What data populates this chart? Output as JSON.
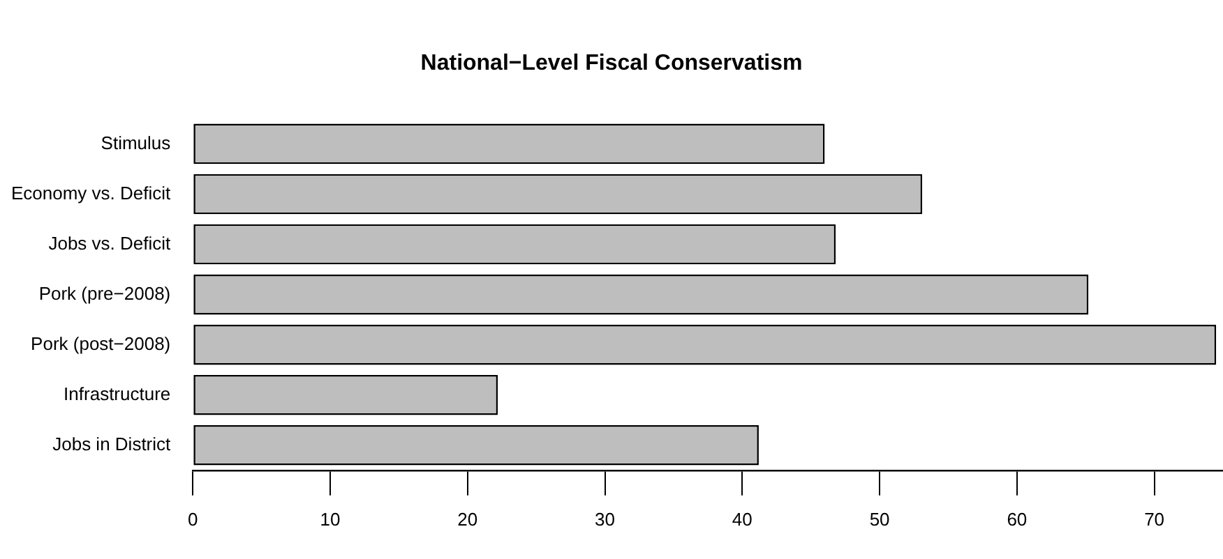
{
  "chart_data": {
    "type": "bar",
    "orientation": "horizontal",
    "title": "National−Level Fiscal Conservatism",
    "categories": [
      "Stimulus",
      "Economy vs. Deficit",
      "Jobs vs. Deficit",
      "Pork (pre−2008)",
      "Pork (post−2008)",
      "Infrastructure",
      "Jobs in District"
    ],
    "values": [
      46.0,
      53.1,
      46.8,
      65.2,
      74.5,
      22.2,
      41.2
    ],
    "color": "#bebebe",
    "xlim": [
      0,
      75
    ],
    "xticks": [
      0,
      10,
      20,
      30,
      40,
      50,
      60,
      70
    ],
    "grid": false,
    "legend": false
  }
}
